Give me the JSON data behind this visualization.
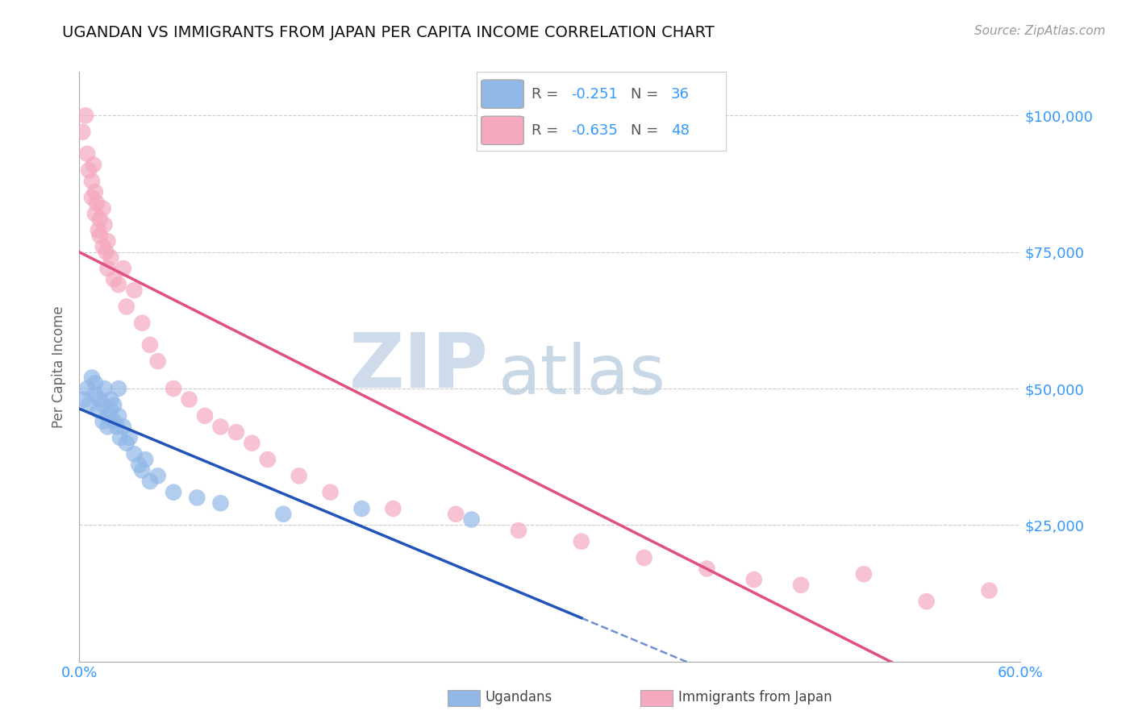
{
  "title": "UGANDAN VS IMMIGRANTS FROM JAPAN PER CAPITA INCOME CORRELATION CHART",
  "source": "Source: ZipAtlas.com",
  "ylabel": "Per Capita Income",
  "xlim": [
    0.0,
    0.6
  ],
  "ylim": [
    0,
    108000
  ],
  "yticks": [
    0,
    25000,
    50000,
    75000,
    100000
  ],
  "ytick_labels": [
    "",
    "$25,000",
    "$50,000",
    "$75,000",
    "$100,000"
  ],
  "xticks": [
    0.0,
    0.15,
    0.3,
    0.45,
    0.6
  ],
  "xtick_labels": [
    "0.0%",
    "",
    "",
    "",
    "60.0%"
  ],
  "blue_R": -0.251,
  "blue_N": 36,
  "pink_R": -0.635,
  "pink_N": 48,
  "blue_color": "#92b8e8",
  "pink_color": "#f5a8be",
  "blue_line_color": "#2255bb",
  "pink_line_color": "#e05080",
  "legend_blue_label": "Ugandans",
  "legend_pink_label": "Immigrants from Japan",
  "blue_scatter_x": [
    0.003,
    0.005,
    0.006,
    0.008,
    0.01,
    0.01,
    0.012,
    0.013,
    0.015,
    0.015,
    0.016,
    0.018,
    0.018,
    0.02,
    0.02,
    0.022,
    0.022,
    0.024,
    0.025,
    0.025,
    0.026,
    0.028,
    0.03,
    0.032,
    0.035,
    0.038,
    0.04,
    0.042,
    0.045,
    0.05,
    0.06,
    0.075,
    0.09,
    0.13,
    0.18,
    0.25
  ],
  "blue_scatter_y": [
    48000,
    50000,
    47000,
    52000,
    49000,
    51000,
    46000,
    48000,
    44000,
    47000,
    50000,
    43000,
    45000,
    48000,
    46000,
    44000,
    47000,
    43000,
    50000,
    45000,
    41000,
    43000,
    40000,
    41000,
    38000,
    36000,
    35000,
    37000,
    33000,
    34000,
    31000,
    30000,
    29000,
    27000,
    28000,
    26000
  ],
  "pink_scatter_x": [
    0.002,
    0.004,
    0.005,
    0.006,
    0.008,
    0.008,
    0.009,
    0.01,
    0.01,
    0.011,
    0.012,
    0.013,
    0.013,
    0.015,
    0.015,
    0.016,
    0.017,
    0.018,
    0.018,
    0.02,
    0.022,
    0.025,
    0.028,
    0.03,
    0.035,
    0.04,
    0.045,
    0.05,
    0.06,
    0.07,
    0.08,
    0.09,
    0.1,
    0.11,
    0.12,
    0.14,
    0.16,
    0.2,
    0.24,
    0.28,
    0.32,
    0.36,
    0.4,
    0.43,
    0.46,
    0.5,
    0.54,
    0.58
  ],
  "pink_scatter_y": [
    97000,
    100000,
    93000,
    90000,
    88000,
    85000,
    91000,
    86000,
    82000,
    84000,
    79000,
    81000,
    78000,
    83000,
    76000,
    80000,
    75000,
    72000,
    77000,
    74000,
    70000,
    69000,
    72000,
    65000,
    68000,
    62000,
    58000,
    55000,
    50000,
    48000,
    45000,
    43000,
    42000,
    40000,
    37000,
    34000,
    31000,
    28000,
    27000,
    24000,
    22000,
    19000,
    17000,
    15000,
    14000,
    16000,
    11000,
    13000
  ],
  "background_color": "#ffffff",
  "grid_color": "#cccccc",
  "blue_line_x_solid_end": 0.32,
  "pink_line_x_start": 0.0,
  "pink_line_x_end": 0.6
}
